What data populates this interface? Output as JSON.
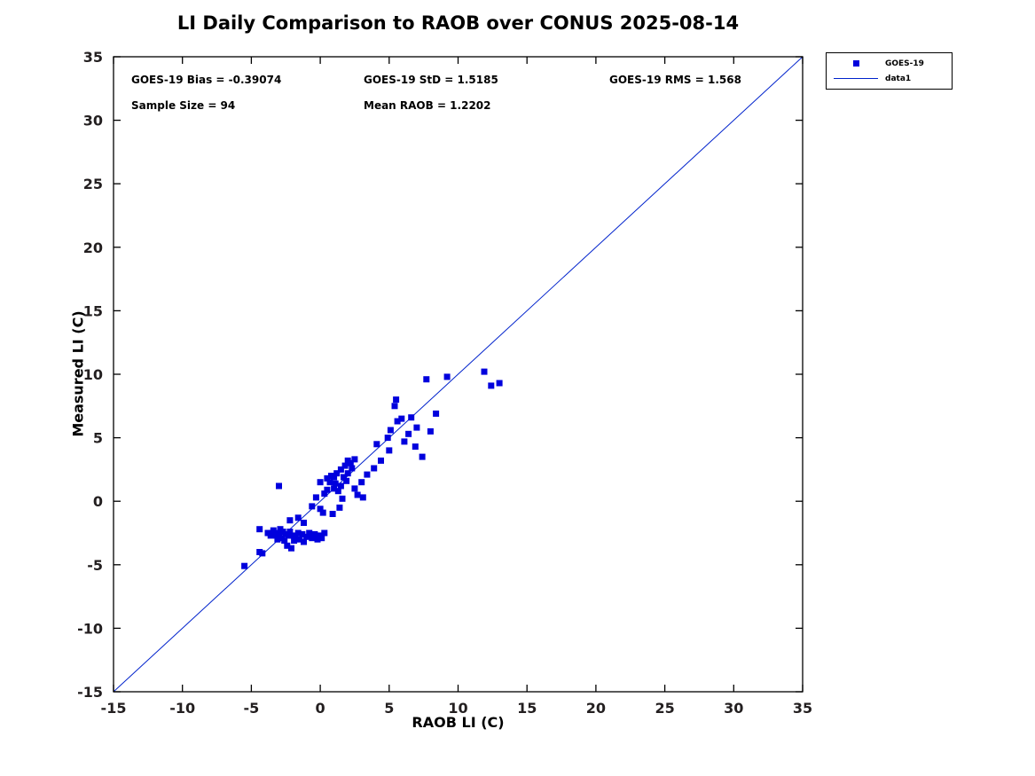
{
  "title": "LI Daily Comparison to RAOB over CONUS 2025-08-14",
  "annotations": {
    "bias": "GOES-19 Bias = -0.39074",
    "std": "GOES-19 StD = 1.5185",
    "rms": "GOES-19 RMS = 1.568",
    "sample_size": "Sample Size = 94",
    "mean_raob": "Mean RAOB = 1.2202"
  },
  "legend": {
    "marker_entry": "GOES-19",
    "line_entry": "data1"
  },
  "chart_data": {
    "type": "scatter",
    "title": "LI Daily Comparison to RAOB over CONUS 2025-08-14",
    "xlabel": "RAOB LI (C)",
    "ylabel": "Measured LI (C)",
    "xlim": [
      -15,
      35
    ],
    "ylim": [
      -15,
      35
    ],
    "xticks": [
      -15,
      -10,
      -5,
      0,
      5,
      10,
      15,
      20,
      25,
      30,
      35
    ],
    "yticks": [
      -15,
      -10,
      -5,
      0,
      5,
      10,
      15,
      20,
      25,
      30,
      35
    ],
    "grid": false,
    "legend_position": "outside-top-right",
    "marker_color": "#0000dd",
    "line_color": "#0022cc",
    "reference_line": {
      "name": "data1",
      "x": [
        -15,
        35
      ],
      "y": [
        -15,
        35
      ]
    },
    "stats": {
      "bias": -0.39074,
      "std": 1.5185,
      "rms": 1.568,
      "sample_size": 94,
      "mean_raob": 1.2202
    },
    "series": [
      {
        "name": "GOES-19",
        "marker": "square",
        "points": [
          [
            -5.5,
            -5.1
          ],
          [
            -4.4,
            -2.2
          ],
          [
            -4.4,
            -4.0
          ],
          [
            -4.2,
            -4.1
          ],
          [
            -3.8,
            -2.5
          ],
          [
            -3.6,
            -2.7
          ],
          [
            -3.4,
            -2.3
          ],
          [
            -3.2,
            -2.7
          ],
          [
            -3.1,
            -3.0
          ],
          [
            -3.0,
            -2.5
          ],
          [
            -2.9,
            -2.2
          ],
          [
            -2.8,
            -2.9
          ],
          [
            -2.7,
            -2.4
          ],
          [
            -2.6,
            -3.1
          ],
          [
            -2.5,
            -2.6
          ],
          [
            -2.4,
            -3.5
          ],
          [
            -2.3,
            -2.7
          ],
          [
            -2.2,
            -2.4
          ],
          [
            -2.1,
            -3.7
          ],
          [
            -2.0,
            -2.7
          ],
          [
            -1.9,
            -3.1
          ],
          [
            -1.8,
            -2.8
          ],
          [
            -1.6,
            -2.5
          ],
          [
            -1.5,
            -3.0
          ],
          [
            -1.3,
            -2.6
          ],
          [
            -1.2,
            -3.2
          ],
          [
            -1.0,
            -2.8
          ],
          [
            -0.8,
            -2.5
          ],
          [
            -0.6,
            -2.9
          ],
          [
            -0.4,
            -2.6
          ],
          [
            -0.2,
            -3.0
          ],
          [
            0.0,
            -2.7
          ],
          [
            0.1,
            -2.9
          ],
          [
            0.3,
            -2.5
          ],
          [
            -3.0,
            1.2
          ],
          [
            -2.2,
            -1.5
          ],
          [
            -1.6,
            -1.3
          ],
          [
            -1.2,
            -1.7
          ],
          [
            -0.6,
            -0.4
          ],
          [
            -0.3,
            0.3
          ],
          [
            0.0,
            -0.6
          ],
          [
            0.0,
            1.5
          ],
          [
            0.2,
            -0.9
          ],
          [
            0.3,
            0.6
          ],
          [
            0.5,
            0.9
          ],
          [
            0.5,
            1.8
          ],
          [
            0.7,
            1.5
          ],
          [
            0.8,
            2.0
          ],
          [
            0.9,
            -1.0
          ],
          [
            1.0,
            1.0
          ],
          [
            1.0,
            1.9
          ],
          [
            1.1,
            1.4
          ],
          [
            1.2,
            2.2
          ],
          [
            1.3,
            0.8
          ],
          [
            1.4,
            -0.5
          ],
          [
            1.5,
            1.2
          ],
          [
            1.5,
            2.5
          ],
          [
            1.6,
            0.2
          ],
          [
            1.7,
            1.9
          ],
          [
            1.8,
            2.8
          ],
          [
            1.9,
            1.6
          ],
          [
            2.0,
            2.2
          ],
          [
            2.0,
            3.2
          ],
          [
            2.2,
            3.0
          ],
          [
            2.3,
            2.6
          ],
          [
            2.5,
            3.3
          ],
          [
            2.5,
            1.0
          ],
          [
            2.7,
            0.5
          ],
          [
            3.0,
            1.5
          ],
          [
            3.1,
            0.3
          ],
          [
            3.4,
            2.1
          ],
          [
            3.9,
            2.6
          ],
          [
            4.1,
            4.5
          ],
          [
            4.4,
            3.2
          ],
          [
            4.9,
            5.0
          ],
          [
            5.0,
            4.0
          ],
          [
            5.1,
            5.6
          ],
          [
            5.4,
            7.5
          ],
          [
            5.5,
            8.0
          ],
          [
            5.6,
            6.3
          ],
          [
            5.9,
            6.5
          ],
          [
            6.1,
            4.7
          ],
          [
            6.4,
            5.3
          ],
          [
            6.6,
            6.6
          ],
          [
            6.9,
            4.3
          ],
          [
            7.0,
            5.8
          ],
          [
            7.4,
            3.5
          ],
          [
            7.7,
            9.6
          ],
          [
            8.0,
            5.5
          ],
          [
            8.4,
            6.9
          ],
          [
            9.2,
            9.8
          ],
          [
            11.9,
            10.2
          ],
          [
            12.4,
            9.1
          ],
          [
            13.0,
            9.3
          ]
        ]
      }
    ]
  }
}
